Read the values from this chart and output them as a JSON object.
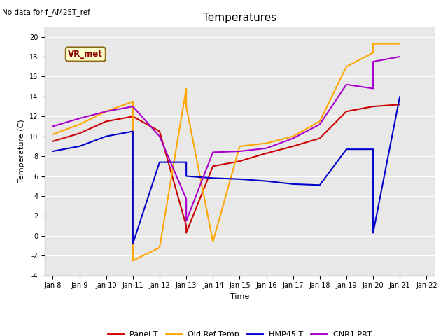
{
  "title": "Temperatures",
  "xlabel": "Time",
  "ylabel": "Temperature (C)",
  "no_data_text": "No data for f_AM25T_ref",
  "vr_met_label": "VR_met",
  "ylim": [
    -4,
    21
  ],
  "xtick_labels": [
    "Jan 8",
    "Jan 9",
    "Jan 10",
    "Jan 11",
    "Jan 12",
    "Jan 13",
    "Jan 14",
    "Jan 15",
    "Jan 16",
    "Jan 17",
    "Jan 18",
    "Jan 19",
    "Jan 20",
    "Jan 21",
    "Jan 22"
  ],
  "ytick_values": [
    -4,
    -2,
    0,
    2,
    4,
    6,
    8,
    10,
    12,
    14,
    16,
    18,
    20
  ],
  "series": {
    "Panel T": {
      "color": "#cc0000",
      "x": [
        0,
        1,
        2,
        3,
        3,
        4,
        5,
        5,
        6,
        7,
        8,
        9,
        10,
        11,
        12,
        13
      ],
      "y": [
        9.5,
        10.3,
        11.5,
        12.0,
        12.0,
        10.5,
        1.0,
        0.3,
        7.0,
        7.5,
        8.3,
        9.0,
        9.8,
        12.5,
        13.0,
        13.2
      ]
    },
    "Old Ref Temp": {
      "color": "#ffa500",
      "x": [
        0,
        1,
        2,
        3,
        3,
        4,
        5,
        5,
        6,
        6,
        7,
        8,
        9,
        10,
        11,
        12,
        12,
        13
      ],
      "y": [
        10.2,
        11.2,
        12.5,
        13.5,
        -2.5,
        -1.2,
        14.8,
        13.0,
        -0.6,
        -0.6,
        9.0,
        9.3,
        10.0,
        11.5,
        17.0,
        18.4,
        19.3,
        19.3
      ]
    },
    "HMP45 T": {
      "color": "#0000cc",
      "x": [
        0,
        1,
        2,
        3,
        3,
        4,
        5,
        5,
        6,
        7,
        8,
        9,
        10,
        11,
        11,
        12,
        12,
        13
      ],
      "y": [
        8.5,
        9.0,
        10.0,
        10.5,
        -0.8,
        7.4,
        7.4,
        6.0,
        5.8,
        5.7,
        5.5,
        5.2,
        5.1,
        8.7,
        8.7,
        8.7,
        0.3,
        14.0
      ]
    },
    "CNR1 PRT": {
      "color": "#aa00cc",
      "x": [
        0,
        1,
        2,
        3,
        3,
        4,
        5,
        5,
        6,
        7,
        8,
        9,
        10,
        11,
        12,
        12,
        13
      ],
      "y": [
        11.0,
        11.8,
        12.5,
        13.0,
        13.0,
        10.0,
        3.7,
        1.5,
        8.4,
        8.5,
        8.8,
        9.8,
        11.2,
        15.2,
        14.8,
        17.5,
        18.0
      ]
    }
  },
  "background_color": "#e8e8e8",
  "plot_bg_color": "#e8e8e8",
  "legend_entries": [
    "Panel T",
    "Old Ref Temp",
    "HMP45 T",
    "CNR1 PRT"
  ],
  "legend_colors": [
    "#cc0000",
    "#ffa500",
    "#0000cc",
    "#aa00cc"
  ],
  "grid_color": "#ffffff",
  "linewidth": 1.5,
  "title_fontsize": 11,
  "tick_fontsize": 7,
  "axis_label_fontsize": 8,
  "legend_fontsize": 8
}
